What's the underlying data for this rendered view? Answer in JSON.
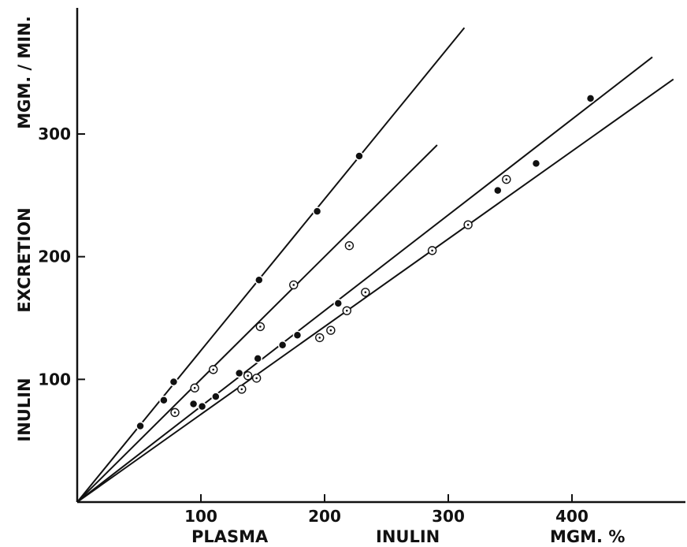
{
  "chart_data": {
    "type": "scatter",
    "title": "",
    "xlabel_parts": [
      "PLASMA",
      "INULIN",
      "MGM. %"
    ],
    "ylabel_parts": [
      "INULIN",
      "EXCRETION",
      "MGM. / MIN."
    ],
    "xlim": [
      0,
      480
    ],
    "ylim": [
      0,
      400
    ],
    "x_ticks": [
      100,
      200,
      300,
      400
    ],
    "y_ticks": [
      100,
      200,
      300
    ],
    "grid": false,
    "legend": "none",
    "lines": [
      {
        "slope": 1.235,
        "x_end": 313
      },
      {
        "slope": 1.0,
        "x_end": 291
      },
      {
        "slope": 0.78,
        "x_end": 465
      },
      {
        "slope": 0.715,
        "x_end": 482
      }
    ],
    "series": [
      {
        "marker": "filled-circle",
        "points": [
          [
            51,
            62
          ],
          [
            70,
            83
          ],
          [
            78,
            98
          ],
          [
            94,
            80
          ],
          [
            101,
            78
          ],
          [
            112,
            86
          ],
          [
            131,
            105
          ],
          [
            146,
            117
          ],
          [
            147,
            181
          ],
          [
            166,
            128
          ],
          [
            178,
            136
          ],
          [
            194,
            237
          ],
          [
            211,
            162
          ],
          [
            228,
            282
          ],
          [
            340,
            254
          ],
          [
            371,
            276
          ],
          [
            415,
            329
          ]
        ]
      },
      {
        "marker": "open-circle",
        "points": [
          [
            79,
            73
          ],
          [
            95,
            93
          ],
          [
            110,
            108
          ],
          [
            133,
            92
          ],
          [
            138,
            103
          ],
          [
            145,
            101
          ],
          [
            148,
            143
          ],
          [
            175,
            177
          ],
          [
            196,
            134
          ],
          [
            205,
            140
          ],
          [
            218,
            156
          ],
          [
            220,
            209
          ],
          [
            233,
            171
          ],
          [
            287,
            205
          ],
          [
            316,
            226
          ],
          [
            347,
            263
          ]
        ]
      }
    ]
  }
}
